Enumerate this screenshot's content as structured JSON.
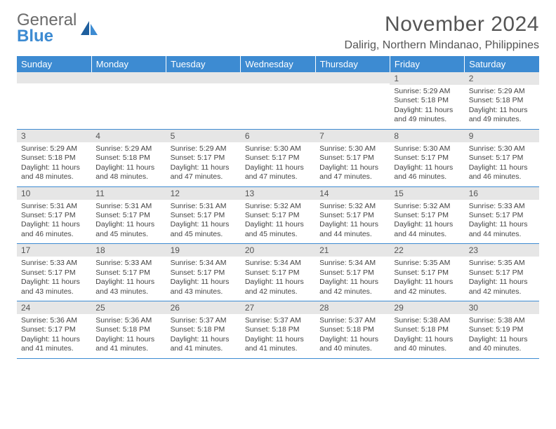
{
  "brand": {
    "line1": "General",
    "line2": "Blue"
  },
  "title": "November 2024",
  "location": "Dalirig, Northern Mindanao, Philippines",
  "weekdays": [
    "Sunday",
    "Monday",
    "Tuesday",
    "Wednesday",
    "Thursday",
    "Friday",
    "Saturday"
  ],
  "colors": {
    "header_bg": "#3d8bd2",
    "header_text": "#ffffff",
    "daynum_bg": "#e6e6e6",
    "rule": "#3d8bd2",
    "text": "#444444"
  },
  "typography": {
    "title_fontsize": 30,
    "location_fontsize": 16,
    "weekday_fontsize": 13,
    "cell_fontsize": 10.5
  },
  "grid": [
    [
      {
        "n": "",
        "sunrise": "",
        "sunset": "",
        "daylight": ""
      },
      {
        "n": "",
        "sunrise": "",
        "sunset": "",
        "daylight": ""
      },
      {
        "n": "",
        "sunrise": "",
        "sunset": "",
        "daylight": ""
      },
      {
        "n": "",
        "sunrise": "",
        "sunset": "",
        "daylight": ""
      },
      {
        "n": "",
        "sunrise": "",
        "sunset": "",
        "daylight": ""
      },
      {
        "n": "1",
        "sunrise": "5:29 AM",
        "sunset": "5:18 PM",
        "daylight": "11 hours and 49 minutes."
      },
      {
        "n": "2",
        "sunrise": "5:29 AM",
        "sunset": "5:18 PM",
        "daylight": "11 hours and 49 minutes."
      }
    ],
    [
      {
        "n": "3",
        "sunrise": "5:29 AM",
        "sunset": "5:18 PM",
        "daylight": "11 hours and 48 minutes."
      },
      {
        "n": "4",
        "sunrise": "5:29 AM",
        "sunset": "5:18 PM",
        "daylight": "11 hours and 48 minutes."
      },
      {
        "n": "5",
        "sunrise": "5:29 AM",
        "sunset": "5:17 PM",
        "daylight": "11 hours and 47 minutes."
      },
      {
        "n": "6",
        "sunrise": "5:30 AM",
        "sunset": "5:17 PM",
        "daylight": "11 hours and 47 minutes."
      },
      {
        "n": "7",
        "sunrise": "5:30 AM",
        "sunset": "5:17 PM",
        "daylight": "11 hours and 47 minutes."
      },
      {
        "n": "8",
        "sunrise": "5:30 AM",
        "sunset": "5:17 PM",
        "daylight": "11 hours and 46 minutes."
      },
      {
        "n": "9",
        "sunrise": "5:30 AM",
        "sunset": "5:17 PM",
        "daylight": "11 hours and 46 minutes."
      }
    ],
    [
      {
        "n": "10",
        "sunrise": "5:31 AM",
        "sunset": "5:17 PM",
        "daylight": "11 hours and 46 minutes."
      },
      {
        "n": "11",
        "sunrise": "5:31 AM",
        "sunset": "5:17 PM",
        "daylight": "11 hours and 45 minutes."
      },
      {
        "n": "12",
        "sunrise": "5:31 AM",
        "sunset": "5:17 PM",
        "daylight": "11 hours and 45 minutes."
      },
      {
        "n": "13",
        "sunrise": "5:32 AM",
        "sunset": "5:17 PM",
        "daylight": "11 hours and 45 minutes."
      },
      {
        "n": "14",
        "sunrise": "5:32 AM",
        "sunset": "5:17 PM",
        "daylight": "11 hours and 44 minutes."
      },
      {
        "n": "15",
        "sunrise": "5:32 AM",
        "sunset": "5:17 PM",
        "daylight": "11 hours and 44 minutes."
      },
      {
        "n": "16",
        "sunrise": "5:33 AM",
        "sunset": "5:17 PM",
        "daylight": "11 hours and 44 minutes."
      }
    ],
    [
      {
        "n": "17",
        "sunrise": "5:33 AM",
        "sunset": "5:17 PM",
        "daylight": "11 hours and 43 minutes."
      },
      {
        "n": "18",
        "sunrise": "5:33 AM",
        "sunset": "5:17 PM",
        "daylight": "11 hours and 43 minutes."
      },
      {
        "n": "19",
        "sunrise": "5:34 AM",
        "sunset": "5:17 PM",
        "daylight": "11 hours and 43 minutes."
      },
      {
        "n": "20",
        "sunrise": "5:34 AM",
        "sunset": "5:17 PM",
        "daylight": "11 hours and 42 minutes."
      },
      {
        "n": "21",
        "sunrise": "5:34 AM",
        "sunset": "5:17 PM",
        "daylight": "11 hours and 42 minutes."
      },
      {
        "n": "22",
        "sunrise": "5:35 AM",
        "sunset": "5:17 PM",
        "daylight": "11 hours and 42 minutes."
      },
      {
        "n": "23",
        "sunrise": "5:35 AM",
        "sunset": "5:17 PM",
        "daylight": "11 hours and 42 minutes."
      }
    ],
    [
      {
        "n": "24",
        "sunrise": "5:36 AM",
        "sunset": "5:17 PM",
        "daylight": "11 hours and 41 minutes."
      },
      {
        "n": "25",
        "sunrise": "5:36 AM",
        "sunset": "5:18 PM",
        "daylight": "11 hours and 41 minutes."
      },
      {
        "n": "26",
        "sunrise": "5:37 AM",
        "sunset": "5:18 PM",
        "daylight": "11 hours and 41 minutes."
      },
      {
        "n": "27",
        "sunrise": "5:37 AM",
        "sunset": "5:18 PM",
        "daylight": "11 hours and 41 minutes."
      },
      {
        "n": "28",
        "sunrise": "5:37 AM",
        "sunset": "5:18 PM",
        "daylight": "11 hours and 40 minutes."
      },
      {
        "n": "29",
        "sunrise": "5:38 AM",
        "sunset": "5:18 PM",
        "daylight": "11 hours and 40 minutes."
      },
      {
        "n": "30",
        "sunrise": "5:38 AM",
        "sunset": "5:19 PM",
        "daylight": "11 hours and 40 minutes."
      }
    ]
  ],
  "labels": {
    "sunrise": "Sunrise:",
    "sunset": "Sunset:",
    "daylight": "Daylight:"
  }
}
